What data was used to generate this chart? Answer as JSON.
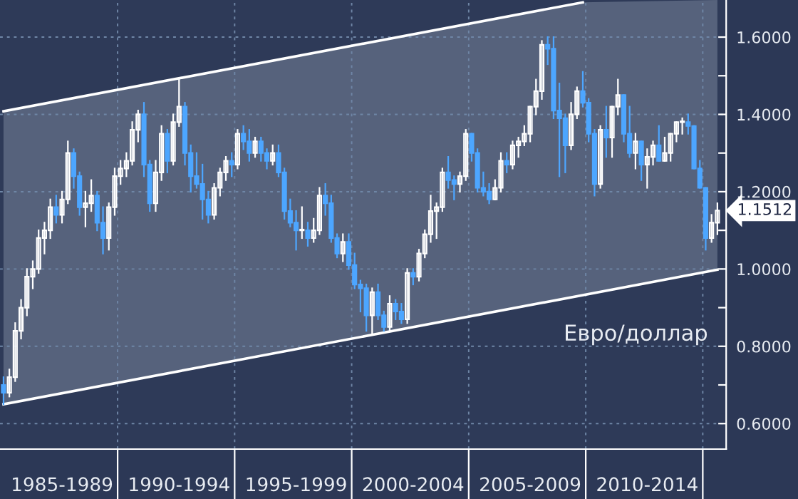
{
  "chart_data": {
    "type": "candlestick",
    "annotations": [
      "Евро/доллар"
    ],
    "ylim": [
      0.534,
      1.696
    ],
    "yticks": [
      {
        "value": 0.6,
        "label": "0.6000"
      },
      {
        "value": 0.7,
        "label": null
      },
      {
        "value": 0.8,
        "label": "0.8000"
      },
      {
        "value": 0.9,
        "label": null
      },
      {
        "value": 1.0,
        "label": "1.0000"
      },
      {
        "value": 1.1,
        "label": null
      },
      {
        "value": 1.1512,
        "label": "1.1512"
      },
      {
        "value": 1.2,
        "label": "1.2000"
      },
      {
        "value": 1.3,
        "label": null
      },
      {
        "value": 1.4,
        "label": "1.4000"
      },
      {
        "value": 1.5,
        "label": null
      },
      {
        "value": 1.6,
        "label": "1.6000"
      }
    ],
    "grid": true,
    "series": [
      {
        "type": "line",
        "color": "#ffffff",
        "values": [
          1.408,
          null,
          null,
          null,
          null,
          null,
          null,
          null,
          null,
          null,
          null,
          null,
          null,
          null,
          null,
          null,
          null,
          null,
          null,
          null,
          null,
          null,
          null,
          null,
          null,
          null,
          null,
          null,
          null,
          null,
          null,
          null,
          null,
          null,
          null,
          null,
          null,
          null,
          null,
          null,
          null,
          null,
          null,
          null,
          null,
          null,
          null,
          null,
          null,
          null,
          null,
          null,
          null,
          null,
          null,
          null,
          null,
          null,
          null,
          null,
          null,
          null,
          null,
          null,
          null,
          null,
          null,
          null,
          null,
          null,
          null,
          null,
          null,
          null,
          null,
          null,
          null,
          null,
          null,
          null,
          null,
          null,
          null,
          null,
          null,
          null,
          null,
          null,
          null,
          null,
          null,
          null,
          null,
          null,
          null,
          null,
          null,
          null,
          null,
          1.69,
          null,
          null,
          null,
          null,
          null,
          null,
          null,
          null,
          null,
          null,
          null,
          null,
          null,
          null,
          null,
          null,
          null,
          null,
          null,
          null,
          null,
          null,
          null
        ],
        "upper": [
          1.408,
          null,
          null,
          null,
          null,
          null,
          null,
          null,
          null,
          null,
          null,
          null,
          null,
          null,
          null,
          null,
          null,
          null,
          null,
          null,
          null,
          null,
          null,
          null,
          null,
          null,
          null,
          null,
          null,
          null,
          null,
          null,
          null,
          null,
          null,
          null,
          null,
          null,
          null,
          null,
          null,
          null,
          null,
          null,
          null,
          null,
          null,
          null,
          null,
          null,
          null,
          null,
          null,
          null,
          null,
          null,
          null,
          null,
          null,
          null,
          null,
          null,
          null,
          null,
          null,
          null,
          null,
          null,
          null,
          null,
          null,
          null,
          null,
          null,
          null,
          null,
          null,
          null,
          null,
          null,
          null,
          null,
          null,
          null,
          null,
          null,
          null,
          null,
          null,
          null,
          null,
          null,
          null,
          null,
          null,
          null,
          null,
          null,
          null,
          1.69,
          null,
          null,
          null,
          null,
          null,
          null,
          null,
          null,
          null,
          null,
          null,
          null,
          null,
          null,
          null,
          null,
          null,
          null,
          null,
          null,
          null,
          null,
          1.696
        ],
        "lower": [
          0.65,
          null,
          null,
          null,
          null,
          null,
          null,
          null,
          null,
          null,
          null,
          null,
          null,
          null,
          null,
          null,
          null,
          null,
          null,
          null,
          null,
          null,
          null,
          null,
          null,
          null,
          null,
          null,
          null,
          null,
          null,
          null,
          null,
          null,
          null,
          null,
          null,
          null,
          null,
          null,
          null,
          null,
          null,
          null,
          null,
          null,
          null,
          null,
          null,
          null,
          null,
          null,
          null,
          null,
          null,
          null,
          null,
          null,
          null,
          null,
          null,
          null,
          null,
          null,
          null,
          null,
          null,
          null,
          null,
          null,
          null,
          null,
          null,
          null,
          null,
          null,
          null,
          null,
          null,
          null,
          null,
          null,
          null,
          null,
          null,
          null,
          null,
          null,
          null,
          null,
          null,
          null,
          null,
          null,
          null,
          null,
          null,
          null,
          null,
          0.932,
          null,
          null,
          null,
          null,
          null,
          null,
          null,
          null,
          null,
          null,
          null,
          null,
          null,
          null,
          null,
          null,
          null,
          null,
          null,
          null,
          null,
          null,
          0.998
        ]
      },
      {
        "type": "line",
        "color": "#ffffff",
        "values": [
          0.65,
          null,
          null,
          null,
          null,
          null,
          null,
          null,
          null,
          null,
          null,
          null,
          null,
          null,
          null,
          null,
          null,
          null,
          null,
          null,
          null,
          null,
          null,
          null,
          null,
          null,
          null,
          null,
          null,
          null,
          null,
          null,
          null,
          null,
          null,
          null,
          null,
          null,
          null,
          null,
          null,
          null,
          null,
          null,
          null,
          null,
          null,
          null,
          null,
          null,
          null,
          null,
          null,
          null,
          null,
          null,
          null,
          null,
          null,
          null,
          null,
          null,
          null,
          null,
          null,
          null,
          null,
          null,
          null,
          null,
          null,
          null,
          null,
          null,
          null,
          null,
          null,
          null,
          null,
          null,
          null,
          null,
          null,
          null,
          null,
          null,
          null,
          null,
          null,
          null,
          null,
          null,
          null,
          null,
          null,
          null,
          null,
          null,
          null,
          null,
          null,
          null,
          null,
          null,
          null,
          null,
          null,
          null,
          null,
          null,
          null,
          null,
          null,
          null,
          null,
          null,
          null,
          null,
          null,
          null,
          null,
          null,
          0.998
        ]
      }
    ],
    "categories": [
      null,
      null,
      null,
      null,
      null,
      null,
      null,
      null,
      null,
      null,
      "1985-1989",
      null,
      null,
      null,
      null,
      null,
      null,
      null,
      null,
      null,
      null,
      null,
      null,
      null,
      null,
      null,
      null,
      null,
      null,
      null,
      "1990-1994",
      null,
      null,
      null,
      null,
      null,
      null,
      null,
      null,
      null,
      null,
      null,
      null,
      null,
      null,
      null,
      null,
      null,
      null,
      null,
      "1995-1999",
      null,
      null,
      null,
      null,
      null,
      null,
      null,
      null,
      null,
      null,
      null,
      null,
      null,
      null,
      null,
      null,
      null,
      null,
      null,
      "2000-2004",
      null,
      null,
      null,
      null,
      null,
      null,
      null,
      null,
      null,
      null,
      null,
      null,
      null,
      null,
      null,
      null,
      null,
      null,
      null,
      "2005-2009",
      null,
      null,
      null,
      null,
      null,
      null,
      null,
      null,
      null,
      null,
      null,
      null,
      null,
      null,
      null,
      null,
      null,
      null,
      null,
      "2010-2014",
      null,
      null,
      null,
      null,
      null,
      null,
      null,
      null,
      null,
      null,
      null,
      null
    ],
    "colors": [
      "#4da6ff",
      "#ffffff",
      "#ffffff",
      "#ffffff",
      "#ffffff",
      "#ffffff",
      "#ffffff",
      "#ffffff",
      "#ffffff",
      "#4da6ff",
      "#ffffff",
      "#ffffff",
      "#4da6ff",
      "#4da6ff",
      "#ffffff",
      "#ffffff",
      "#4da6ff",
      "#4da6ff",
      "#ffffff",
      "#ffffff",
      "#ffffff",
      "#ffffff",
      "#ffffff",
      "#ffffff",
      "#4da6ff",
      "#4da6ff",
      "#ffffff",
      "#ffffff",
      "#4da6ff",
      "#ffffff",
      "#ffffff",
      "#4da6ff",
      "#4da6ff",
      "#4da6ff",
      "#4da6ff",
      "#4da6ff",
      "#ffffff",
      "#ffffff",
      "#ffffff",
      "#4da6ff",
      "#ffffff",
      "#4da6ff",
      "#4da6ff",
      "#ffffff",
      "#4da6ff",
      "#4da6ff",
      "#ffffff",
      "#4da6ff",
      "#4da6ff",
      "#4da6ff",
      "#4da6ff",
      "#ffffff",
      "#4da6ff",
      "#ffffff",
      "#ffffff",
      "#4da6ff",
      "#4da6ff",
      "#4da6ff",
      "#ffffff",
      "#4da6ff",
      "#4da6ff",
      "#4da6ff",
      "#4da6ff",
      "#ffffff",
      "#4da6ff",
      "#4da6ff",
      "#ffffff",
      "#4da6ff",
      "#4da6ff",
      "#ffffff",
      "#4da6ff",
      "#ffffff",
      "#ffffff",
      "#ffffff",
      "#ffffff",
      "#ffffff",
      "#4da6ff",
      "#4da6ff",
      "#ffffff",
      "#ffffff",
      "#4da6ff",
      "#4da6ff",
      "#4da6ff",
      "#4da6ff",
      "#ffffff",
      "#ffffff",
      "#4da6ff",
      "#ffffff",
      "#ffffff",
      "#ffffff",
      "#ffffff",
      "#ffffff",
      "#ffffff",
      "#4da6ff",
      "#4da6ff",
      "#4da6ff",
      "#4da6ff",
      "#ffffff",
      "#ffffff",
      "#4da6ff",
      "#4da6ff",
      "#4da6ff",
      "#ffffff",
      "#4da6ff",
      "#ffffff",
      "#ffffff",
      "#4da6ff",
      "#4da6ff",
      "#ffffff",
      "#4da6ff",
      "#ffffff",
      "#ffffff",
      "#4da6ff",
      "#ffffff",
      "#ffffff",
      "#ffffff",
      "#ffffff",
      "#4da6ff",
      "#4da6ff",
      "#4da6ff",
      "#4da6ff",
      "#ffffff",
      "#ffffff"
    ],
    "ohlc": [
      [
        0.7,
        0.72,
        0.65,
        0.68
      ],
      [
        0.68,
        0.74,
        0.67,
        0.72
      ],
      [
        0.72,
        0.86,
        0.71,
        0.84
      ],
      [
        0.84,
        0.92,
        0.82,
        0.9
      ],
      [
        0.9,
        1.0,
        0.88,
        0.98
      ],
      [
        0.98,
        1.02,
        0.95,
        1.0
      ],
      [
        1.0,
        1.1,
        0.99,
        1.08
      ],
      [
        1.08,
        1.12,
        1.04,
        1.1
      ],
      [
        1.1,
        1.18,
        1.08,
        1.16
      ],
      [
        1.16,
        1.19,
        1.12,
        1.14
      ],
      [
        1.14,
        1.2,
        1.12,
        1.18
      ],
      [
        1.18,
        1.33,
        1.17,
        1.3
      ],
      [
        1.3,
        1.31,
        1.21,
        1.24
      ],
      [
        1.24,
        1.25,
        1.14,
        1.16
      ],
      [
        1.16,
        1.2,
        1.11,
        1.17
      ],
      [
        1.17,
        1.23,
        1.15,
        1.19
      ],
      [
        1.19,
        1.2,
        1.1,
        1.12
      ],
      [
        1.12,
        1.16,
        1.04,
        1.08
      ],
      [
        1.08,
        1.17,
        1.05,
        1.16
      ],
      [
        1.16,
        1.26,
        1.14,
        1.24
      ],
      [
        1.24,
        1.28,
        1.22,
        1.26
      ],
      [
        1.26,
        1.3,
        1.24,
        1.28
      ],
      [
        1.28,
        1.38,
        1.27,
        1.36
      ],
      [
        1.36,
        1.41,
        1.33,
        1.4
      ],
      [
        1.4,
        1.43,
        1.24,
        1.27
      ],
      [
        1.27,
        1.28,
        1.15,
        1.17
      ],
      [
        1.17,
        1.28,
        1.15,
        1.25
      ],
      [
        1.25,
        1.37,
        1.23,
        1.35
      ],
      [
        1.35,
        1.36,
        1.25,
        1.28
      ],
      [
        1.28,
        1.4,
        1.27,
        1.38
      ],
      [
        1.38,
        1.49,
        1.37,
        1.42
      ],
      [
        1.42,
        1.43,
        1.27,
        1.3
      ],
      [
        1.3,
        1.32,
        1.2,
        1.24
      ],
      [
        1.24,
        1.3,
        1.21,
        1.22
      ],
      [
        1.22,
        1.27,
        1.13,
        1.18
      ],
      [
        1.18,
        1.2,
        1.12,
        1.14
      ],
      [
        1.14,
        1.22,
        1.13,
        1.21
      ],
      [
        1.21,
        1.26,
        1.19,
        1.25
      ],
      [
        1.25,
        1.29,
        1.23,
        1.28
      ],
      [
        1.28,
        1.3,
        1.24,
        1.27
      ],
      [
        1.27,
        1.36,
        1.26,
        1.35
      ],
      [
        1.35,
        1.37,
        1.31,
        1.33
      ],
      [
        1.33,
        1.36,
        1.28,
        1.3
      ],
      [
        1.3,
        1.34,
        1.29,
        1.33
      ],
      [
        1.33,
        1.34,
        1.28,
        1.3
      ],
      [
        1.3,
        1.31,
        1.26,
        1.28
      ],
      [
        1.28,
        1.32,
        1.27,
        1.3
      ],
      [
        1.3,
        1.32,
        1.24,
        1.25
      ],
      [
        1.25,
        1.26,
        1.13,
        1.15
      ],
      [
        1.15,
        1.18,
        1.11,
        1.12
      ],
      [
        1.12,
        1.15,
        1.05,
        1.1
      ],
      [
        1.1,
        1.16,
        1.08,
        1.1
      ],
      [
        1.1,
        1.12,
        1.06,
        1.08
      ],
      [
        1.08,
        1.13,
        1.07,
        1.1
      ],
      [
        1.1,
        1.21,
        1.09,
        1.19
      ],
      [
        1.19,
        1.22,
        1.14,
        1.17
      ],
      [
        1.17,
        1.19,
        1.07,
        1.08
      ],
      [
        1.08,
        1.09,
        1.03,
        1.04
      ],
      [
        1.04,
        1.09,
        1.02,
        1.07
      ],
      [
        1.07,
        1.09,
        1.0,
        1.01
      ],
      [
        1.01,
        1.04,
        0.95,
        0.96
      ],
      [
        0.96,
        0.97,
        0.89,
        0.95
      ],
      [
        0.95,
        0.96,
        0.84,
        0.88
      ],
      [
        0.88,
        0.95,
        0.83,
        0.94
      ],
      [
        0.94,
        0.96,
        0.87,
        0.88
      ],
      [
        0.88,
        0.89,
        0.84,
        0.85
      ],
      [
        0.85,
        0.93,
        0.84,
        0.91
      ],
      [
        0.91,
        0.92,
        0.87,
        0.89
      ],
      [
        0.89,
        0.91,
        0.86,
        0.87
      ],
      [
        0.87,
        1.0,
        0.86,
        0.99
      ],
      [
        0.99,
        1.0,
        0.96,
        0.98
      ],
      [
        0.98,
        1.05,
        0.97,
        1.04
      ],
      [
        1.04,
        1.1,
        1.03,
        1.09
      ],
      [
        1.09,
        1.19,
        1.07,
        1.15
      ],
      [
        1.15,
        1.17,
        1.08,
        1.16
      ],
      [
        1.16,
        1.26,
        1.15,
        1.25
      ],
      [
        1.25,
        1.29,
        1.21,
        1.23
      ],
      [
        1.23,
        1.24,
        1.18,
        1.22
      ],
      [
        1.22,
        1.25,
        1.2,
        1.24
      ],
      [
        1.24,
        1.36,
        1.23,
        1.35
      ],
      [
        1.35,
        1.35,
        1.28,
        1.3
      ],
      [
        1.3,
        1.31,
        1.2,
        1.21
      ],
      [
        1.21,
        1.25,
        1.19,
        1.2
      ],
      [
        1.2,
        1.22,
        1.17,
        1.18
      ],
      [
        1.18,
        1.23,
        1.18,
        1.21
      ],
      [
        1.21,
        1.3,
        1.2,
        1.28
      ],
      [
        1.28,
        1.3,
        1.25,
        1.27
      ],
      [
        1.27,
        1.33,
        1.26,
        1.32
      ],
      [
        1.32,
        1.34,
        1.29,
        1.33
      ],
      [
        1.33,
        1.37,
        1.32,
        1.35
      ],
      [
        1.35,
        1.42,
        1.33,
        1.42
      ],
      [
        1.42,
        1.49,
        1.4,
        1.46
      ],
      [
        1.46,
        1.59,
        1.44,
        1.58
      ],
      [
        1.58,
        1.6,
        1.53,
        1.57
      ],
      [
        1.57,
        1.6,
        1.39,
        1.41
      ],
      [
        1.41,
        1.48,
        1.24,
        1.39
      ],
      [
        1.39,
        1.4,
        1.25,
        1.32
      ],
      [
        1.32,
        1.43,
        1.31,
        1.4
      ],
      [
        1.4,
        1.47,
        1.39,
        1.46
      ],
      [
        1.46,
        1.51,
        1.42,
        1.43
      ],
      [
        1.43,
        1.44,
        1.33,
        1.35
      ],
      [
        1.35,
        1.36,
        1.19,
        1.22
      ],
      [
        1.22,
        1.37,
        1.21,
        1.36
      ],
      [
        1.36,
        1.42,
        1.29,
        1.34
      ],
      [
        1.34,
        1.42,
        1.29,
        1.42
      ],
      [
        1.42,
        1.49,
        1.4,
        1.45
      ],
      [
        1.45,
        1.45,
        1.33,
        1.35
      ],
      [
        1.35,
        1.42,
        1.29,
        1.3
      ],
      [
        1.3,
        1.35,
        1.26,
        1.33
      ],
      [
        1.33,
        1.33,
        1.23,
        1.27
      ],
      [
        1.27,
        1.31,
        1.21,
        1.29
      ],
      [
        1.29,
        1.33,
        1.27,
        1.32
      ],
      [
        1.32,
        1.37,
        1.28,
        1.28
      ],
      [
        1.28,
        1.34,
        1.28,
        1.3
      ],
      [
        1.3,
        1.35,
        1.28,
        1.35
      ],
      [
        1.35,
        1.38,
        1.33,
        1.38
      ],
      [
        1.38,
        1.39,
        1.35,
        1.38
      ],
      [
        1.38,
        1.4,
        1.35,
        1.37
      ],
      [
        1.37,
        1.37,
        1.26,
        1.26
      ],
      [
        1.26,
        1.28,
        1.21,
        1.21
      ],
      [
        1.21,
        1.21,
        1.05,
        1.08
      ],
      [
        1.08,
        1.14,
        1.07,
        1.12
      ],
      [
        1.12,
        1.17,
        1.09,
        1.1512
      ]
    ]
  }
}
